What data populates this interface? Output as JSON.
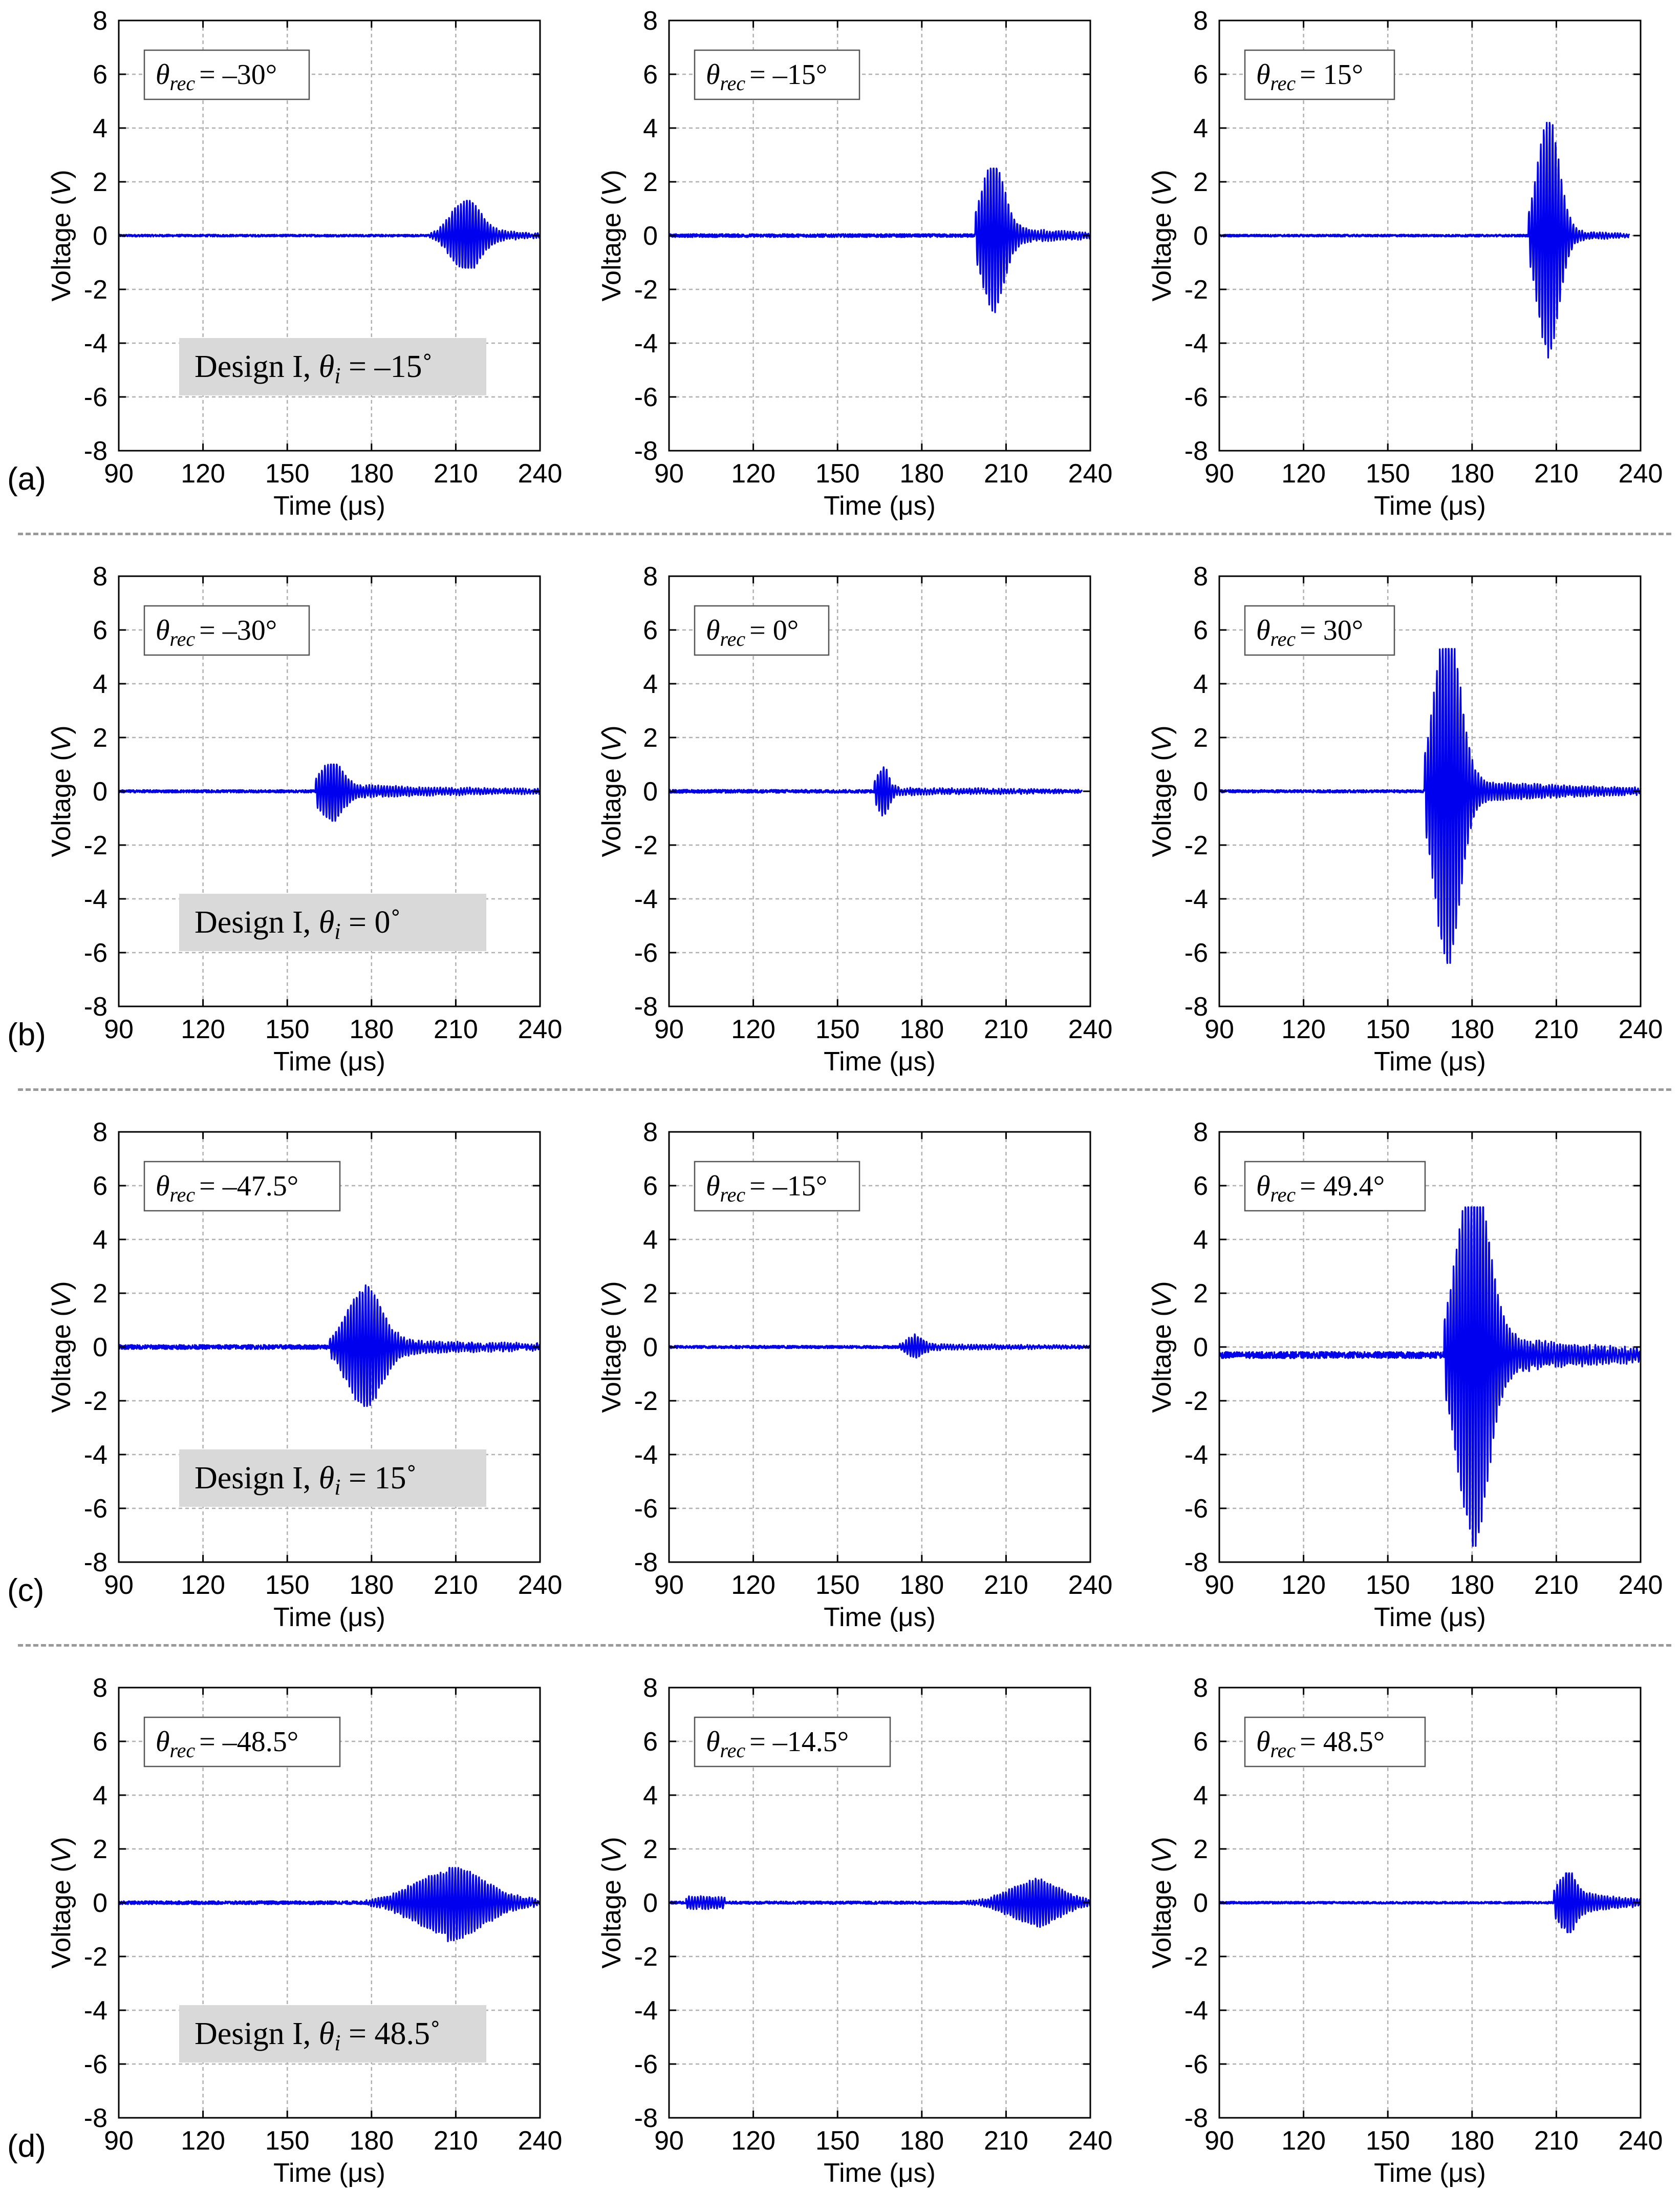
{
  "figure": {
    "x_axis_label": "Time (μs)",
    "y_axis_label_prefix": "Voltage (",
    "y_axis_label_italic": "V",
    "y_axis_label_suffix": ")",
    "x_ticks": [
      "90",
      "120",
      "150",
      "180",
      "210",
      "240"
    ],
    "y_ticks": [
      "8",
      "6",
      "4",
      "2",
      "0",
      "-2",
      "-4",
      "-6",
      "-8"
    ],
    "xlim": [
      90,
      240
    ],
    "ylim": [
      -8,
      8
    ],
    "line_color": "#0000ee",
    "design_box_color": "#d9d9d9"
  },
  "chart_data": {
    "type": "line",
    "title": "",
    "xlabel": "Time (μs)",
    "ylabel": "Voltage (V)",
    "grid": true,
    "rows": [
      {
        "label": "(a)",
        "design": {
          "prefix": "Design I, ",
          "sym": "θ",
          "sub": "i",
          "value": " = –15˚"
        },
        "charts": [
          {
            "angle": "= –30°",
            "onset": 200,
            "center": 213,
            "amp": 1.25,
            "sigma": 5,
            "tail_amp": 0.3,
            "tail_end": 240,
            "baseline": 0,
            "noise": 0.04,
            "end": 240,
            "peak_max": 1.3,
            "peak_min": -1.2
          },
          {
            "angle": "= –15°",
            "onset": 199,
            "center": 205,
            "amp": 2.6,
            "sigma": 4,
            "tail_amp": 0.35,
            "tail_end": 240,
            "baseline": 0,
            "noise": 0.06,
            "end": 240,
            "peak_max": 2.5,
            "peak_min": -2.9
          },
          {
            "angle": "= 15°",
            "onset": 200,
            "center": 207,
            "amp": 4.3,
            "sigma": 3.8,
            "tail_amp": 0.25,
            "tail_end": 236,
            "baseline": 0,
            "noise": 0.04,
            "end": 236,
            "peak_max": 4.2,
            "peak_min": -4.6
          }
        ]
      },
      {
        "label": "(b)",
        "design": {
          "prefix": "Design I, ",
          "sym": "θ",
          "sub": "i",
          "value": " = 0˚"
        },
        "charts": [
          {
            "angle": "= –30°",
            "onset": 160,
            "center": 165,
            "amp": 1.0,
            "sigma": 4,
            "tail_amp": 0.25,
            "tail_end": 240,
            "baseline": 0,
            "noise": 0.05,
            "end": 240,
            "peak_max": 1.0,
            "peak_min": -1.1
          },
          {
            "angle": "= 0°",
            "onset": 163,
            "center": 166,
            "amp": 0.85,
            "sigma": 2,
            "tail_amp": 0.12,
            "tail_end": 240,
            "baseline": 0,
            "noise": 0.06,
            "end": 237,
            "peak_max": 0.9,
            "peak_min": -1.0
          },
          {
            "angle": "= 30°",
            "onset": 163,
            "center": 171,
            "amp": 6.2,
            "sigma": 4.5,
            "tail_amp": 0.45,
            "tail_end": 240,
            "baseline": 0,
            "noise": 0.05,
            "end": 240,
            "peak_max": 5.3,
            "peak_min": -7.0
          }
        ]
      },
      {
        "label": "(c)",
        "design": {
          "prefix": "Design I, ",
          "sym": "θ",
          "sub": "i",
          "value": " = 15˚"
        },
        "charts": [
          {
            "angle": "= –47.5°",
            "onset": 165,
            "center": 177,
            "amp": 2.1,
            "sigma": 6,
            "tail_amp": 0.3,
            "tail_end": 240,
            "baseline": 0,
            "noise": 0.08,
            "end": 240,
            "peak_max": 2.3,
            "peak_min": -2.2
          },
          {
            "angle": "= –15°",
            "onset": 172,
            "center": 177,
            "amp": 0.35,
            "sigma": 3,
            "tail_amp": 0.1,
            "tail_end": 240,
            "baseline": 0,
            "noise": 0.05,
            "end": 240,
            "peak_max": 0.5,
            "peak_min": -0.4
          },
          {
            "angle": "= 49.4°",
            "onset": 170,
            "center": 180,
            "amp": 6.6,
            "sigma": 5.5,
            "tail_amp": 0.8,
            "tail_end": 240,
            "baseline": -0.3,
            "noise": 0.12,
            "end": 240,
            "peak_max": 5.2,
            "peak_min": -7.4
          }
        ]
      },
      {
        "label": "(d)",
        "design": {
          "prefix": "Design I, ",
          "sym": "θ",
          "sub": "i",
          "value": " = 48.5˚"
        },
        "charts": [
          {
            "angle": "= –48.5°",
            "onset": 178,
            "center": 207,
            "amp": 1.15,
            "sigma": 12,
            "tail_amp": 0.3,
            "tail_end": 240,
            "baseline": 0,
            "noise": 0.06,
            "end": 240,
            "peak_max": 1.3,
            "peak_min": -1.7
          },
          {
            "angle": "= –14.5°",
            "onset": 195,
            "center": 220,
            "amp": 0.8,
            "sigma": 9,
            "tail_amp": 0.1,
            "tail_end": 240,
            "baseline": 0,
            "noise": 0.05,
            "end": 240,
            "peak_max": 0.9,
            "peak_min": -1.0,
            "early_burst": 0.2
          },
          {
            "angle": "= 48.5°",
            "onset": 209,
            "center": 213,
            "amp": 1.0,
            "sigma": 3,
            "tail_amp": 0.5,
            "tail_end": 240,
            "baseline": 0,
            "noise": 0.04,
            "end": 240,
            "peak_max": 1.1,
            "peak_min": -1.1
          }
        ]
      }
    ]
  }
}
